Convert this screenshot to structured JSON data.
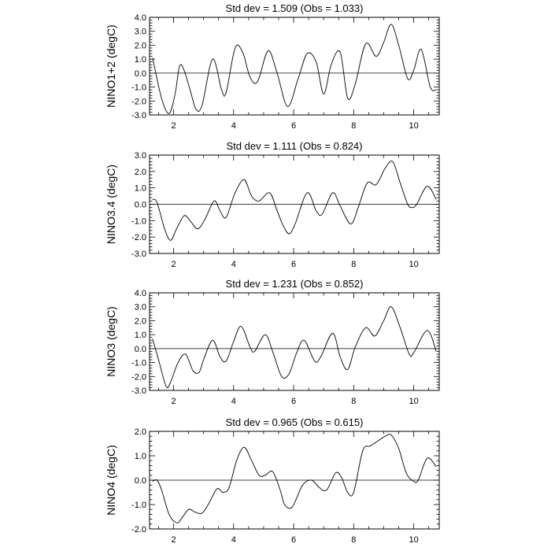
{
  "chart_data": [
    {
      "type": "line",
      "title": "Std dev = 1.509 (Obs = 1.033)",
      "ylabel": "NINO1+2 (degC)",
      "xlabel": "",
      "xlim": [
        1.2,
        10.85
      ],
      "ylim": [
        -3.0,
        4.0
      ],
      "xticks": [
        2,
        4,
        6,
        8,
        10
      ],
      "yticks": [
        -3.0,
        -2.0,
        -1.0,
        0.0,
        1.0,
        2.0,
        3.0,
        4.0
      ],
      "ytick_labels": [
        "-3.0",
        "-2.0",
        "-1.0",
        "0.0",
        "1.0",
        "2.0",
        "3.0",
        "4.0"
      ],
      "reference_line": 0.0,
      "series": [
        {
          "x": [
            1.3,
            1.6,
            1.85,
            2.05,
            2.2,
            2.35,
            2.55,
            2.75,
            2.95,
            3.3,
            3.6,
            3.75,
            4.05,
            4.3,
            4.55,
            4.8,
            5.15,
            5.45,
            5.8,
            6.15,
            6.45,
            6.75,
            7.0,
            7.25,
            7.55,
            7.8,
            8.05,
            8.4,
            8.75,
            9.0,
            9.25,
            9.5,
            9.8,
            10.0,
            10.25,
            10.55,
            10.75
          ],
          "y": [
            1.1,
            -1.8,
            -2.9,
            -1.5,
            0.5,
            0.2,
            -1.2,
            -2.6,
            -2.3,
            1.0,
            -1.2,
            -1.4,
            1.8,
            1.5,
            -0.3,
            -0.6,
            1.6,
            0.0,
            -2.4,
            -0.4,
            1.4,
            0.8,
            -1.5,
            0.6,
            1.5,
            -1.8,
            -0.8,
            2.1,
            1.2,
            2.2,
            3.5,
            2.0,
            -0.4,
            0.2,
            1.7,
            -1.0,
            -1.2
          ]
        }
      ]
    },
    {
      "type": "line",
      "title": "Std dev = 1.111 (Obs = 0.824)",
      "ylabel": "NINO3.4 (degC)",
      "xlabel": "",
      "xlim": [
        1.2,
        10.85
      ],
      "ylim": [
        -3.0,
        3.0
      ],
      "xticks": [
        2,
        4,
        6,
        8,
        10
      ],
      "yticks": [
        -3.0,
        -2.0,
        -1.0,
        0.0,
        1.0,
        2.0,
        3.0
      ],
      "ytick_labels": [
        "-3.0",
        "-2.0",
        "-1.0",
        "0.0",
        "1.0",
        "2.0",
        "3.0"
      ],
      "reference_line": 0.0,
      "series": [
        {
          "x": [
            1.3,
            1.45,
            1.7,
            1.9,
            2.1,
            2.35,
            2.55,
            2.8,
            3.05,
            3.35,
            3.55,
            3.75,
            4.05,
            4.35,
            4.6,
            4.85,
            5.2,
            5.45,
            5.65,
            5.85,
            6.05,
            6.45,
            6.75,
            6.95,
            7.3,
            7.55,
            7.9,
            8.15,
            8.45,
            8.75,
            9.05,
            9.3,
            9.55,
            9.8,
            9.95,
            10.1,
            10.45,
            10.75
          ],
          "y": [
            0.3,
            0.1,
            -1.5,
            -2.2,
            -1.5,
            -0.7,
            -1.0,
            -1.5,
            -0.9,
            0.2,
            -0.4,
            -0.8,
            0.7,
            1.5,
            0.5,
            0.2,
            0.7,
            -0.4,
            -1.3,
            -1.8,
            -1.2,
            0.7,
            -0.4,
            -0.6,
            0.7,
            -0.1,
            -1.2,
            -0.2,
            1.3,
            1.2,
            2.2,
            2.6,
            1.3,
            0.0,
            -0.2,
            0.0,
            1.1,
            0.3
          ]
        }
      ]
    },
    {
      "type": "line",
      "title": "Std dev = 1.231 (Obs = 0.852)",
      "ylabel": "NINO3 (degC)",
      "xlabel": "",
      "xlim": [
        1.2,
        10.85
      ],
      "ylim": [
        -3.0,
        4.0
      ],
      "xticks": [
        2,
        4,
        6,
        8,
        10
      ],
      "yticks": [
        -3.0,
        -2.0,
        -1.0,
        0.0,
        1.0,
        2.0,
        3.0,
        4.0
      ],
      "ytick_labels": [
        "-3.0",
        "-2.0",
        "-1.0",
        "0.0",
        "1.0",
        "2.0",
        "3.0",
        "4.0"
      ],
      "reference_line": 0.0,
      "series": [
        {
          "x": [
            1.3,
            1.5,
            1.75,
            1.9,
            2.15,
            2.4,
            2.65,
            2.85,
            3.0,
            3.3,
            3.55,
            3.75,
            4.0,
            4.25,
            4.55,
            4.7,
            5.05,
            5.3,
            5.6,
            5.85,
            6.1,
            6.35,
            6.7,
            6.9,
            7.3,
            7.55,
            7.8,
            8.05,
            8.4,
            8.7,
            9.0,
            9.25,
            9.55,
            9.85,
            10.0,
            10.45,
            10.75
          ],
          "y": [
            0.7,
            -0.8,
            -2.7,
            -2.4,
            -1.0,
            -0.4,
            -1.6,
            -1.7,
            -0.8,
            0.6,
            -0.6,
            -0.9,
            0.5,
            1.6,
            0.1,
            -0.2,
            1.0,
            -0.2,
            -2.0,
            -1.8,
            -0.3,
            0.6,
            -0.9,
            -0.6,
            1.1,
            -0.6,
            -1.5,
            0.1,
            1.5,
            0.9,
            2.0,
            3.0,
            1.5,
            -0.4,
            -0.3,
            1.3,
            -0.2
          ]
        }
      ]
    },
    {
      "type": "line",
      "title": "Std dev = 0.965 (Obs = 0.615)",
      "ylabel": "NINO4 (degC)",
      "xlabel": "",
      "xlim": [
        1.2,
        10.85
      ],
      "ylim": [
        -2.0,
        2.0
      ],
      "xticks": [
        2,
        4,
        6,
        8,
        10
      ],
      "yticks": [
        -2.0,
        -1.0,
        0.0,
        1.0,
        2.0
      ],
      "ytick_labels": [
        "-2.0",
        "-1.0",
        "0.0",
        "1.0",
        "2.0"
      ],
      "reference_line": 0.0,
      "series": [
        {
          "x": [
            1.3,
            1.45,
            1.6,
            1.85,
            2.1,
            2.25,
            2.5,
            2.7,
            2.95,
            3.2,
            3.45,
            3.65,
            3.85,
            4.1,
            4.35,
            4.6,
            4.85,
            5.05,
            5.3,
            5.55,
            5.7,
            5.95,
            6.3,
            6.6,
            6.85,
            7.1,
            7.4,
            7.6,
            7.8,
            8.0,
            8.3,
            8.55,
            8.8,
            9.05,
            9.25,
            9.5,
            9.75,
            10.0,
            10.15,
            10.45,
            10.75
          ],
          "y": [
            -0.05,
            0.0,
            -0.4,
            -1.4,
            -1.75,
            -1.6,
            -1.2,
            -1.3,
            -1.35,
            -0.9,
            -0.35,
            -0.5,
            -0.3,
            0.8,
            1.35,
            0.8,
            0.2,
            0.2,
            0.35,
            -0.4,
            -1.0,
            -1.1,
            -0.2,
            0.0,
            -0.3,
            -0.4,
            0.3,
            0.1,
            -0.5,
            -0.5,
            1.2,
            1.4,
            1.6,
            1.8,
            1.85,
            1.3,
            0.3,
            -0.05,
            0.0,
            0.9,
            0.55
          ]
        }
      ]
    }
  ]
}
